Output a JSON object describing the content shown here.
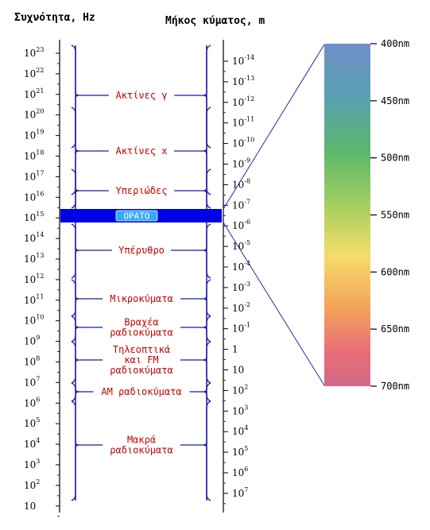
{
  "headers": {
    "frequency": "Συχνότητα, Hz",
    "wavelength": "Μήκος κύματος, m"
  },
  "frequency_ticks": [
    {
      "base": "10",
      "exp": "23"
    },
    {
      "base": "10",
      "exp": "22"
    },
    {
      "base": "10",
      "exp": "21"
    },
    {
      "base": "10",
      "exp": "20"
    },
    {
      "base": "10",
      "exp": "19"
    },
    {
      "base": "10",
      "exp": "18"
    },
    {
      "base": "10",
      "exp": "17"
    },
    {
      "base": "10",
      "exp": "16"
    },
    {
      "base": "10",
      "exp": "15"
    },
    {
      "base": "10",
      "exp": "14"
    },
    {
      "base": "10",
      "exp": "13"
    },
    {
      "base": "10",
      "exp": "12"
    },
    {
      "base": "10",
      "exp": "11"
    },
    {
      "base": "10",
      "exp": "10"
    },
    {
      "base": "10",
      "exp": "9"
    },
    {
      "base": "10",
      "exp": "8"
    },
    {
      "base": "10",
      "exp": "7"
    },
    {
      "base": "10",
      "exp": "6"
    },
    {
      "base": "10",
      "exp": "5"
    },
    {
      "base": "10",
      "exp": "4"
    },
    {
      "base": "10",
      "exp": "3"
    },
    {
      "base": "10",
      "exp": "2"
    },
    {
      "base": "10",
      "exp": ""
    }
  ],
  "wavelength_ticks": [
    {
      "base": "10",
      "exp": "-14"
    },
    {
      "base": "10",
      "exp": "-13"
    },
    {
      "base": "10",
      "exp": "-12"
    },
    {
      "base": "10",
      "exp": "-11"
    },
    {
      "base": "10",
      "exp": "-10"
    },
    {
      "base": "10",
      "exp": "-9"
    },
    {
      "base": "10",
      "exp": "-8"
    },
    {
      "base": "10",
      "exp": "-7"
    },
    {
      "base": "10",
      "exp": "-6"
    },
    {
      "base": "10",
      "exp": "-5"
    },
    {
      "base": "10",
      "exp": "-4"
    },
    {
      "base": "10",
      "exp": "-3"
    },
    {
      "base": "10",
      "exp": "-2"
    },
    {
      "base": "10",
      "exp": "-1"
    },
    {
      "base": "1",
      "exp": ""
    },
    {
      "base": "10",
      "exp": ""
    },
    {
      "base": "10",
      "exp": "2"
    },
    {
      "base": "10",
      "exp": "3"
    },
    {
      "base": "10",
      "exp": "4"
    },
    {
      "base": "10",
      "exp": "5"
    },
    {
      "base": "10",
      "exp": "6"
    },
    {
      "base": "10",
      "exp": "7"
    }
  ],
  "bands": [
    {
      "lines": [
        "Ακτίνες γ"
      ]
    },
    {
      "lines": [
        "Ακτίνες x"
      ]
    },
    {
      "lines": [
        "Υπεριώδες"
      ]
    },
    {
      "lines": [
        "ΟΡΑΤΟ"
      ]
    },
    {
      "lines": [
        "Υπέρυθρο"
      ]
    },
    {
      "lines": [
        "Μικροκύματα"
      ]
    },
    {
      "lines": [
        "Βραχέα",
        "ραδιοκύματα"
      ]
    },
    {
      "lines": [
        "Τηλεοπτικά",
        "και FM",
        "ραδιοκύματα"
      ]
    },
    {
      "lines": [
        "ΑΜ ραδιοκύματα"
      ]
    },
    {
      "lines": [
        "Μακρά",
        "ραδιοκύματα"
      ]
    }
  ],
  "visible_spectrum": {
    "labels": [
      "400nm",
      "450nm",
      "500nm",
      "550nm",
      "600nm",
      "650nm",
      "700nm"
    ],
    "colors": [
      "#6f8fc8",
      "#5aa0b0",
      "#5cb86a",
      "#a8d060",
      "#f6dc6a",
      "#f2a05a",
      "#e86d78",
      "#d06a86"
    ]
  },
  "colors": {
    "axis": "#000000",
    "bracket": "#1a1aa8",
    "band_text": "#cc0000",
    "visible_bar": "#0000e6",
    "visible_label_bg": "#33aaff",
    "zoom_lines": "#2a2ab0"
  }
}
